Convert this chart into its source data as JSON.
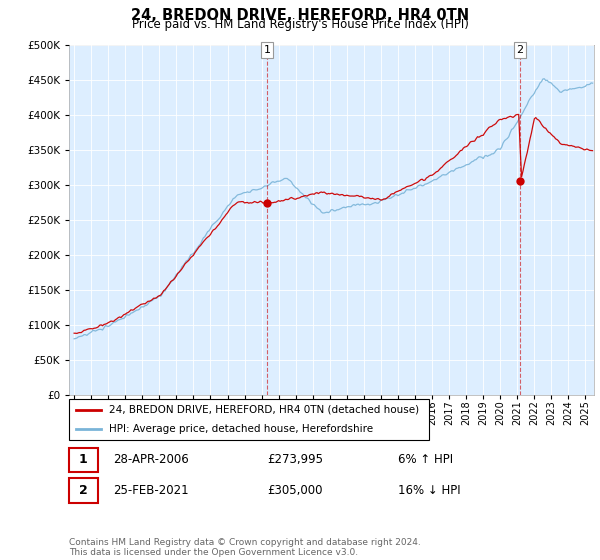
{
  "title": "24, BREDON DRIVE, HEREFORD, HR4 0TN",
  "subtitle": "Price paid vs. HM Land Registry's House Price Index (HPI)",
  "legend_line1": "24, BREDON DRIVE, HEREFORD, HR4 0TN (detached house)",
  "legend_line2": "HPI: Average price, detached house, Herefordshire",
  "footnote": "Contains HM Land Registry data © Crown copyright and database right 2024.\nThis data is licensed under the Open Government Licence v3.0.",
  "sale1_date": "28-APR-2006",
  "sale1_price": "£273,995",
  "sale1_hpi": "6% ↑ HPI",
  "sale2_date": "25-FEB-2021",
  "sale2_price": "£305,000",
  "sale2_hpi": "16% ↓ HPI",
  "hpi_color": "#7ab4d8",
  "sale_color": "#cc0000",
  "bg_color": "#ddeeff",
  "marker1_x": 2006.32,
  "marker1_y": 273995,
  "marker2_x": 2021.15,
  "marker2_y": 305000,
  "ylim": [
    0,
    500000
  ],
  "yticks": [
    0,
    50000,
    100000,
    150000,
    200000,
    250000,
    300000,
    350000,
    400000,
    450000,
    500000
  ],
  "xmin": 1994.7,
  "xmax": 2025.5
}
